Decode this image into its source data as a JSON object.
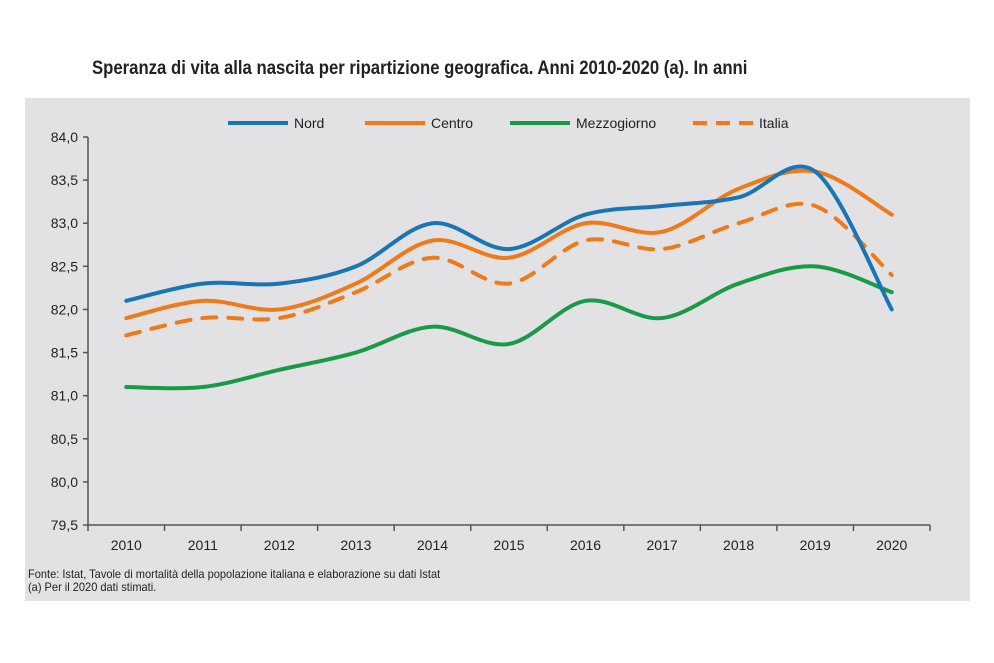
{
  "chart_data": {
    "type": "line",
    "title": "Speranza di vita alla nascita per ripartizione geografica. Anni 2010-2020 (a). In anni",
    "xlabel": "",
    "ylabel": "",
    "x": [
      "2010",
      "2011",
      "2012",
      "2013",
      "2014",
      "2015",
      "2016",
      "2017",
      "2018",
      "2019",
      "2020"
    ],
    "ylim": [
      79.5,
      84.0
    ],
    "yticks": [
      "79,5",
      "80,0",
      "80,5",
      "81,0",
      "81,5",
      "82,0",
      "82,5",
      "83,0",
      "83,5",
      "84,0"
    ],
    "grid": false,
    "legend": "top",
    "series": [
      {
        "name": "Nord",
        "color": "#1a75b4",
        "dashed": false,
        "values": [
          82.1,
          82.3,
          82.3,
          82.5,
          83.0,
          82.7,
          83.1,
          83.2,
          83.3,
          83.6,
          82.0
        ]
      },
      {
        "name": "Centro",
        "color": "#ee7a1a",
        "dashed": false,
        "values": [
          81.9,
          82.1,
          82.0,
          82.3,
          82.8,
          82.6,
          83.0,
          82.9,
          83.4,
          83.6,
          83.1
        ]
      },
      {
        "name": "Mezzogiorno",
        "color": "#1a9a48",
        "dashed": false,
        "values": [
          81.1,
          81.1,
          81.3,
          81.5,
          81.8,
          81.6,
          82.1,
          81.9,
          82.3,
          82.5,
          82.2
        ]
      },
      {
        "name": "Italia",
        "color": "#ee7a1a",
        "dashed": true,
        "values": [
          81.7,
          81.9,
          81.9,
          82.2,
          82.6,
          82.3,
          82.8,
          82.7,
          83.0,
          83.2,
          82.4
        ]
      }
    ]
  },
  "notes": {
    "source": "Fonte: Istat, Tavole di mortalità della popolazione italiana e elaborazione su dati Istat",
    "footnote": "(a) Per il 2020 dati stimati."
  }
}
